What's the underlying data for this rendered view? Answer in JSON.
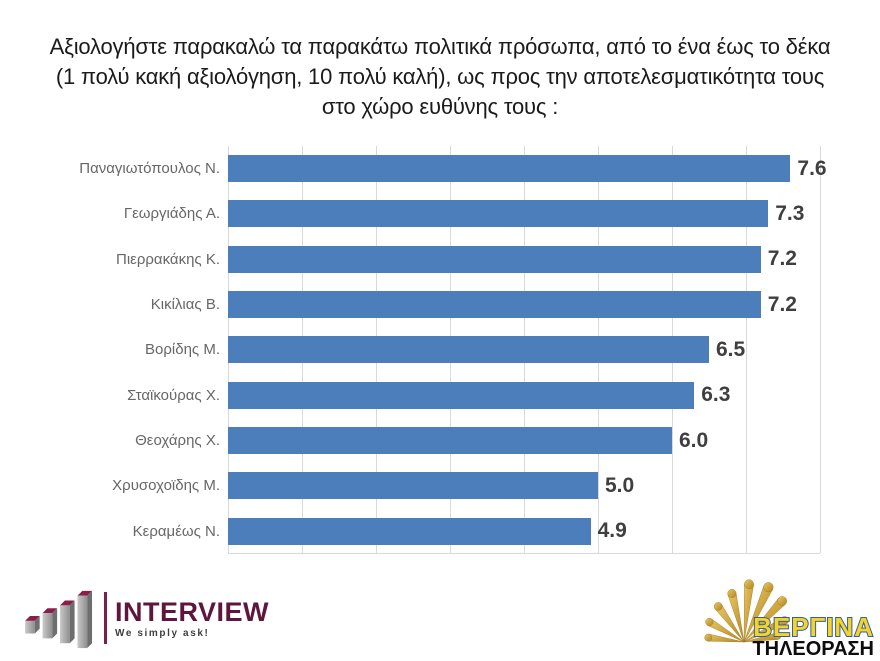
{
  "title": {
    "line1": "Αξιολογήστε παρακαλώ τα παρακάτω πολιτικά πρόσωπα, από το ένα έως το δέκα",
    "line2": "(1 πολύ κακή αξιολόγηση, 10 πολύ καλή), ως προς την αποτελεσματικότητα τους",
    "line3": "στο χώρο ευθύνης τους :"
  },
  "chart_data": {
    "type": "bar",
    "orientation": "horizontal",
    "title": "Αξιολογήστε παρακαλώ τα παρακάτω πολιτικά πρόσωπα, από το ένα έως το δέκα (1 πολύ κακή αξιολόγηση, 10 πολύ καλή), ως προς την αποτελεσματικότητα τους στο χώρο ευθύνης τους :",
    "categories": [
      "Παναγιωτόπουλος Ν.",
      "Γεωργιάδης Α.",
      "Πιερρακάκης Κ.",
      "Κικίλιας Β.",
      "Βορίδης Μ.",
      "Σταϊκούρας Χ.",
      "Θεοχάρης Χ.",
      "Χρυσοχοϊδης Μ.",
      "Κεραμέως Ν."
    ],
    "values": [
      7.6,
      7.3,
      7.2,
      7.2,
      6.5,
      6.3,
      6.0,
      5.0,
      4.9
    ],
    "value_labels": [
      "7.6",
      "7.3",
      "7.2",
      "7.2",
      "6.5",
      "6.3",
      "6.0",
      "5.0",
      "4.9"
    ],
    "xlim": [
      0,
      8
    ],
    "gridline_interval": 1,
    "grid": true,
    "legend": false,
    "bar_color": "#4d7ebc",
    "gridline_color": "#d9d9d9",
    "category_label_color": "#676767",
    "value_label_color": "#3f3f3f"
  },
  "footer": {
    "interview": {
      "name": "INTERVIEW",
      "tagline": "We simply ask!",
      "brand_color": "#5e163e"
    },
    "vergina": {
      "line1": "ΒΕΡΓΙΝΑ",
      "line2": "ΤΗΛΕΟΡΑΣΗ",
      "ray_color": "#d2a73d",
      "wordmark_fill": "#f6d426",
      "wordmark_stroke": "#2f5fa8"
    }
  }
}
